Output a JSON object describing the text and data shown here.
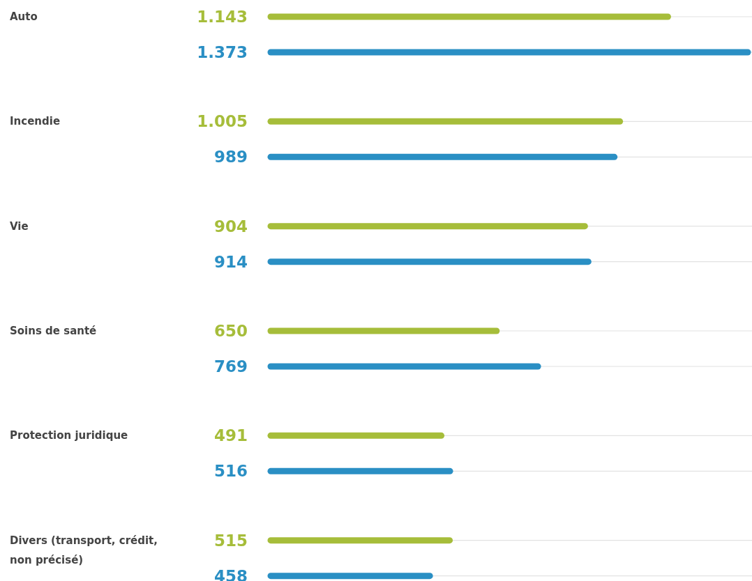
{
  "chart_data": {
    "type": "bar",
    "orientation": "horizontal",
    "categories": [
      "Auto",
      "Incendie",
      "Vie",
      "Soins de santé",
      "Protection juridique",
      "Divers (transport, crédit, non précisé)"
    ],
    "series": [
      {
        "color": "#a6bd3a",
        "values": [
          1143,
          1005,
          904,
          650,
          491,
          515
        ],
        "value_labels": [
          "1.143",
          "1.005",
          "904",
          "650",
          "491",
          "515"
        ]
      },
      {
        "color": "#2a8fc4",
        "values": [
          1373,
          989,
          914,
          769,
          516,
          458
        ],
        "value_labels": [
          "1.373",
          "989",
          "914",
          "769",
          "516",
          "458"
        ]
      }
    ]
  }
}
